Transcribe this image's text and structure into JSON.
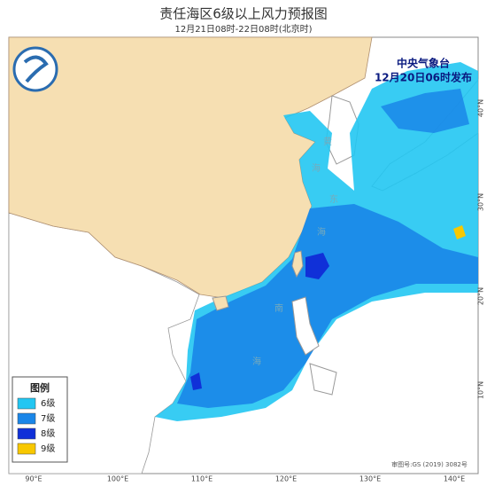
{
  "header": {
    "title": "责任海区6级以上风力预报图",
    "subtitle": "12月21日08时-22日08时(北京时)"
  },
  "issuer": {
    "name": "中央气象台",
    "time": "12月20日06时发布"
  },
  "legend": {
    "title": "图例",
    "items": [
      {
        "label": "6级",
        "color": "#22c6f2"
      },
      {
        "label": "7级",
        "color": "#1a86e8"
      },
      {
        "label": "8级",
        "color": "#1030d8"
      },
      {
        "label": "9级",
        "color": "#f8c800"
      }
    ]
  },
  "axes": {
    "longitude": [
      "90°E",
      "100°E",
      "110°E",
      "120°E",
      "130°E",
      "140°E"
    ],
    "latitude": [
      "40°N",
      "30°N",
      "20°N",
      "10°N"
    ]
  },
  "sea_labels": [
    "黄",
    "海",
    "东",
    "海",
    "南",
    "海"
  ],
  "approval": "审图号:GS (2019) 3082号"
}
